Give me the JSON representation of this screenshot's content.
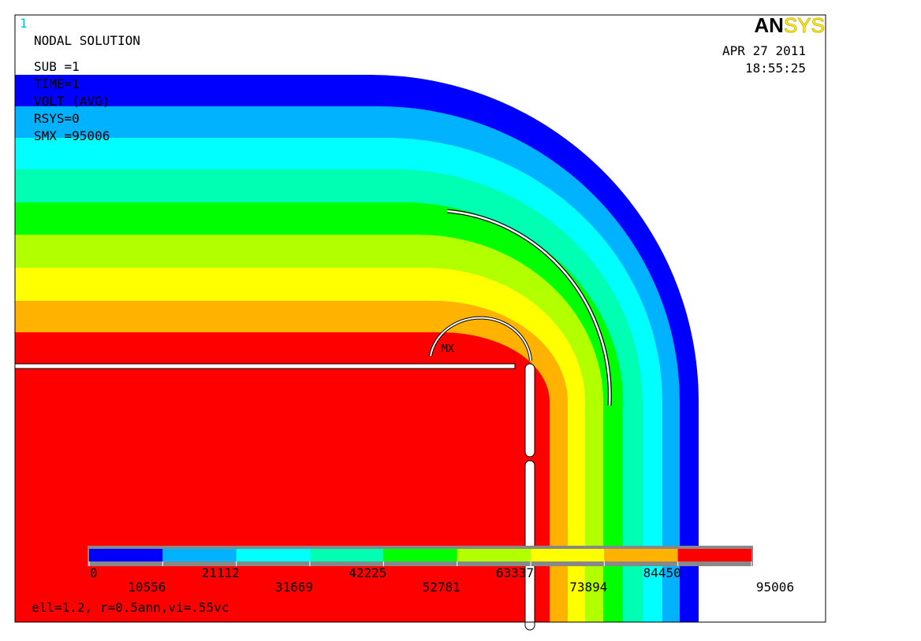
{
  "window_number": "1",
  "header": {
    "lines": [
      "NODAL SOLUTION",
      "SUB =1",
      "TIME=1",
      "VOLT      (AVG)",
      "RSYS=0",
      "SMX =95006"
    ],
    "logo": {
      "an": "AN",
      "sys": "SYS"
    },
    "date": "APR 27 2011",
    "time": "18:55:25"
  },
  "max_label": "MX",
  "legend": {
    "colors": [
      "#0000ff",
      "#00b2ff",
      "#00ffff",
      "#00ffb2",
      "#00ff00",
      "#b2ff00",
      "#ffff00",
      "#ffb200",
      "#ff0000"
    ],
    "values": [
      0,
      10556,
      21112,
      31669,
      42225,
      52781,
      63337,
      73894,
      84450,
      95006
    ]
  },
  "caption": "ell=1.2, r=0.5ann,vi=.55vc"
}
